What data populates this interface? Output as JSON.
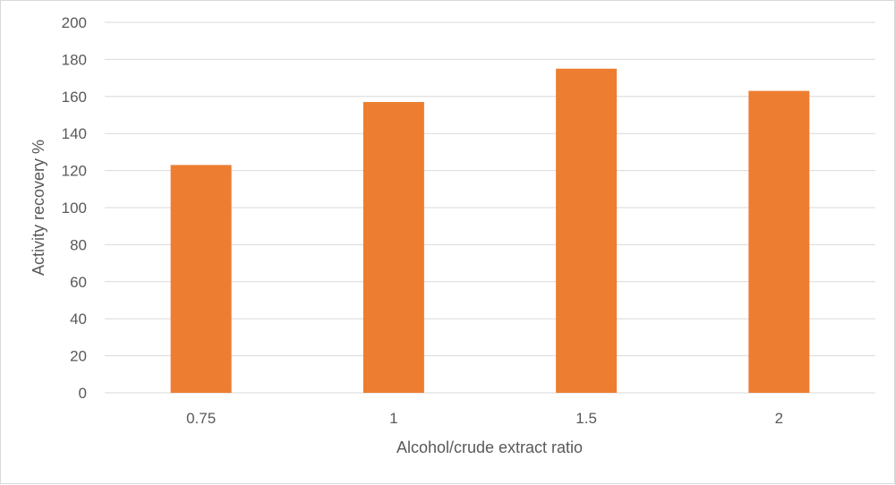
{
  "chart_data": {
    "type": "bar",
    "title": "",
    "xlabel": "Alcohol/crude extract ratio",
    "ylabel": "Activity recovery %",
    "categories": [
      "0.75",
      "1",
      "1.5",
      "2"
    ],
    "values": [
      123,
      157,
      175,
      163
    ],
    "ylim": [
      0,
      200
    ],
    "yticks": [
      0,
      20,
      40,
      60,
      80,
      100,
      120,
      140,
      160,
      180,
      200
    ],
    "grid": true,
    "legend": "none",
    "bar_color": "#ED7D31",
    "grid_color": "#D9D9D9",
    "text_color": "#595959"
  }
}
